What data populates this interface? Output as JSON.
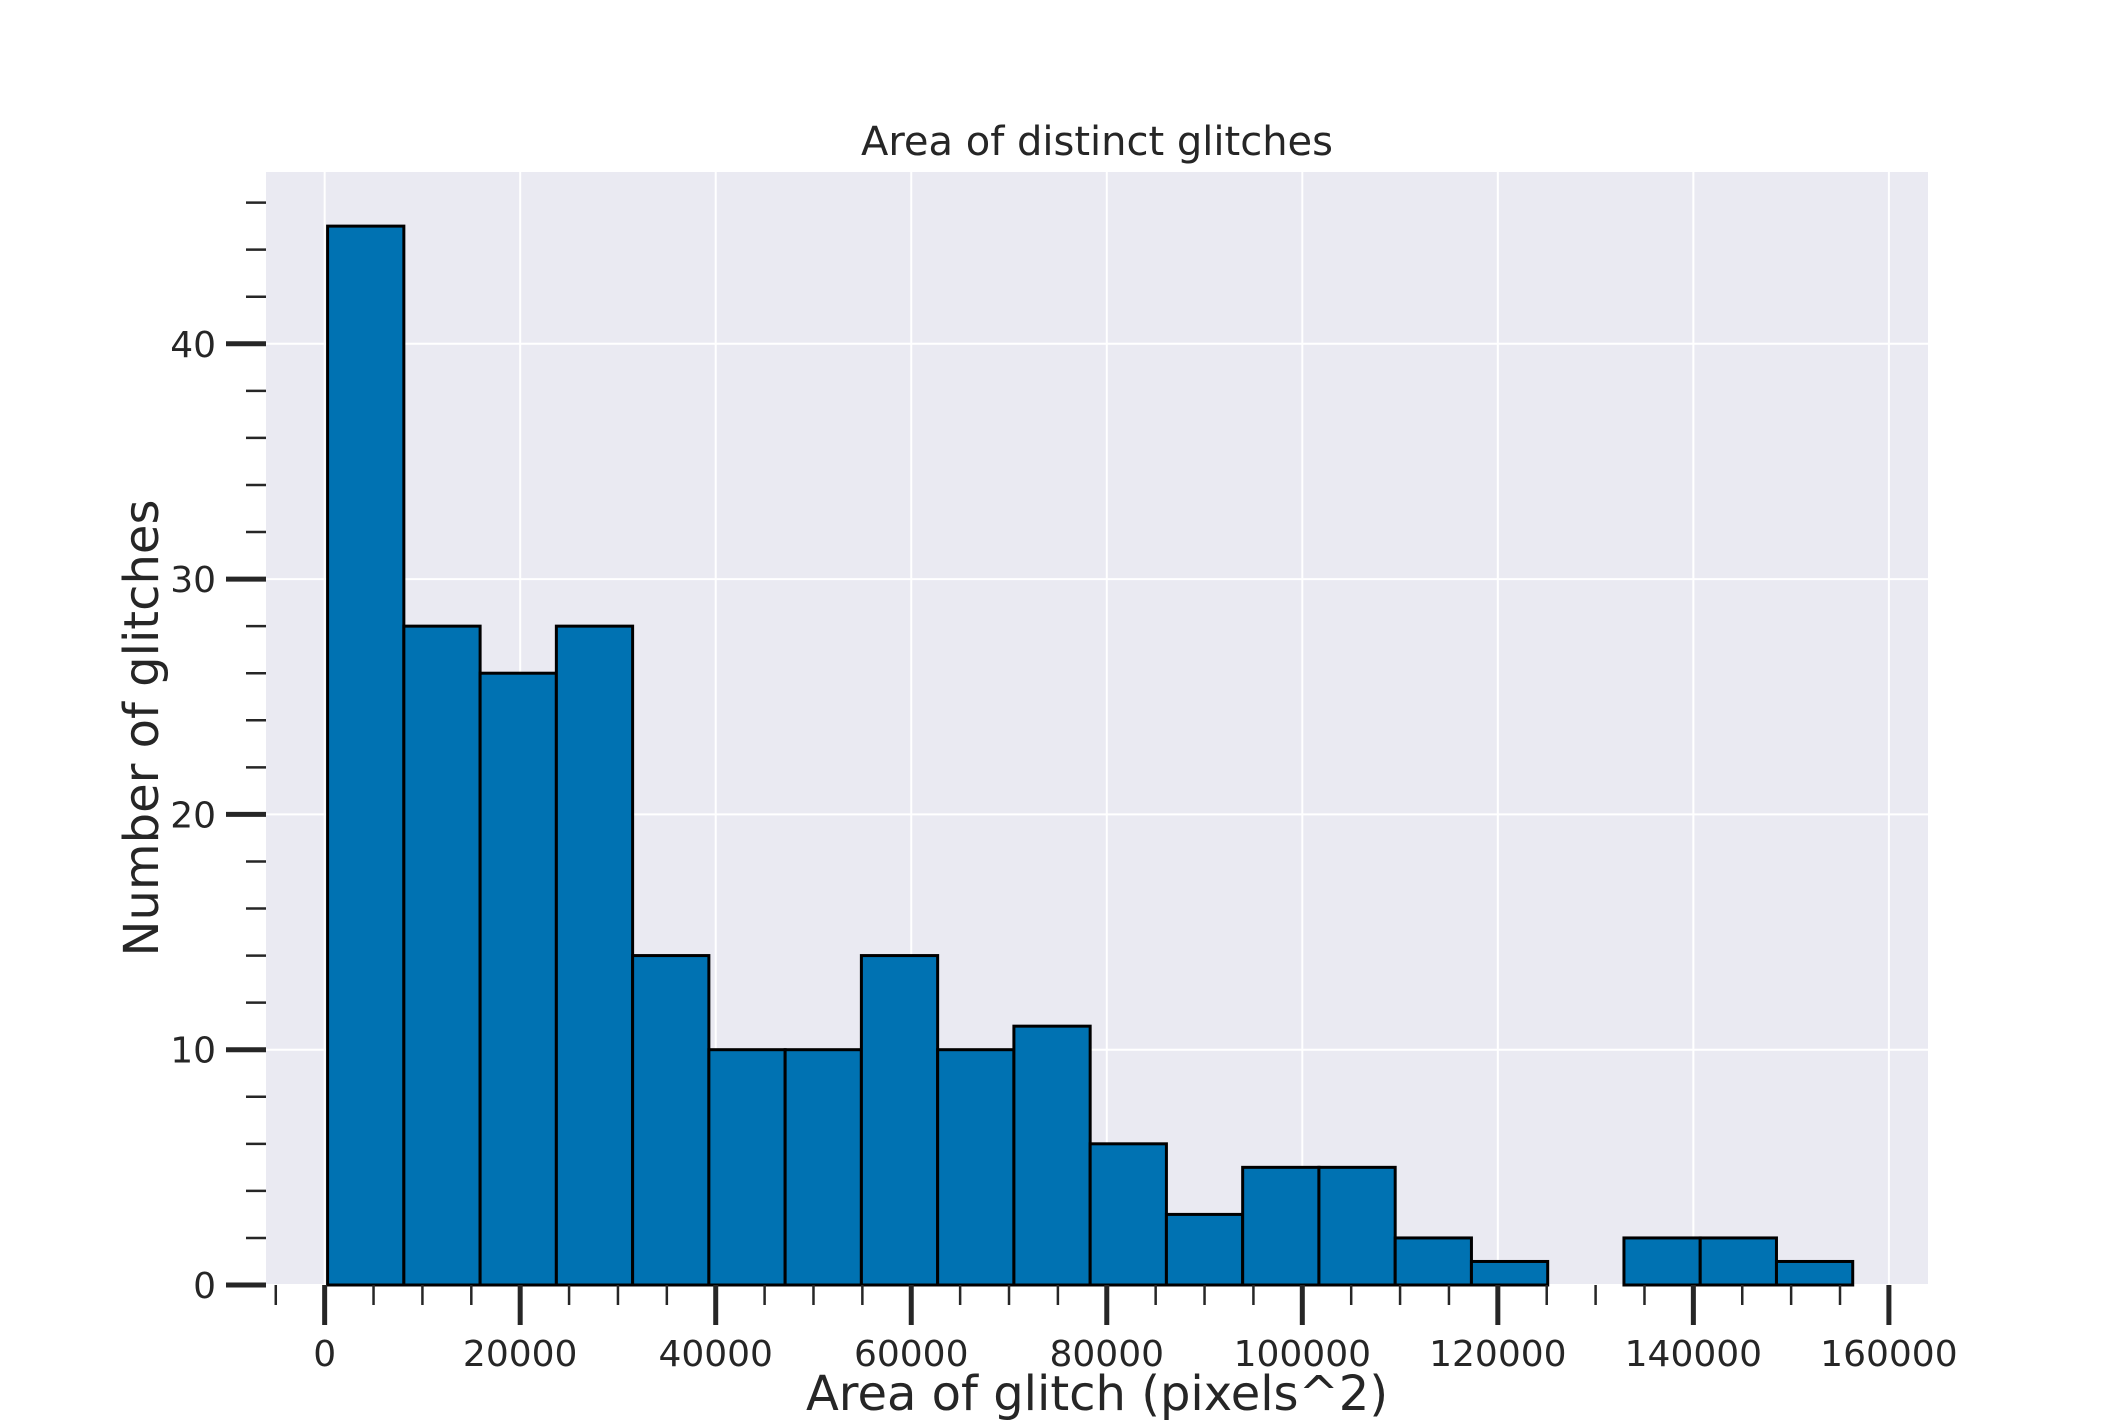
{
  "chart_data": {
    "type": "bar",
    "title": "Area of distinct glitches",
    "xlabel": "Area of glitch (pixels^2)",
    "ylabel": "Number of glitches",
    "xlim": [
      -6000,
      164000
    ],
    "ylim": [
      0,
      47.3
    ],
    "x_ticks": [
      0,
      20000,
      40000,
      60000,
      80000,
      100000,
      120000,
      140000,
      160000
    ],
    "x_tick_labels": [
      "0",
      "20000",
      "40000",
      "60000",
      "80000",
      "100000",
      "120000",
      "140000",
      "160000"
    ],
    "y_ticks": [
      0,
      10,
      20,
      30,
      40
    ],
    "y_tick_labels": [
      "0",
      "10",
      "20",
      "30",
      "40"
    ],
    "bin_edges": [
      300,
      8100,
      15900,
      23700,
      31500,
      39300,
      47100,
      54900,
      62700,
      70500,
      78300,
      86100,
      93900,
      101700,
      109500,
      117300,
      125100,
      132900,
      140700,
      148500,
      156300
    ],
    "values": [
      45,
      28,
      26,
      28,
      14,
      10,
      10,
      14,
      10,
      11,
      6,
      3,
      5,
      5,
      2,
      1,
      0,
      2,
      2,
      1
    ],
    "grid": true,
    "colors": {
      "bar_fill": "#0072B2",
      "bar_edge": "#000000",
      "plot_background": "#EAEAF2",
      "grid": "#FFFFFF",
      "text": "#262626"
    }
  }
}
